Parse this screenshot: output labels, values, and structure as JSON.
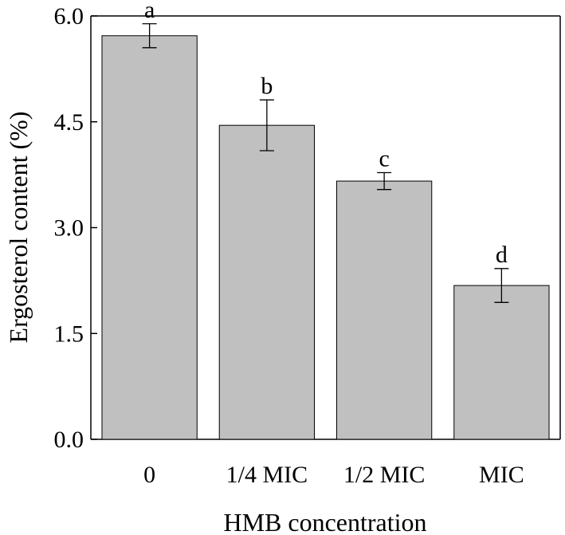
{
  "chart_data": {
    "type": "bar",
    "categories": [
      "0",
      "1/4 MIC",
      "1/2 MIC",
      "MIC"
    ],
    "values": [
      5.72,
      4.45,
      3.66,
      2.18
    ],
    "errors": [
      0.17,
      0.36,
      0.12,
      0.24
    ],
    "significance_letters": [
      "a",
      "b",
      "c",
      "d"
    ],
    "xlabel": "HMB concentration",
    "ylabel": "Ergosterol content (%)",
    "ylim": [
      0,
      6.0
    ],
    "yticks": [
      "0.0",
      "1.5",
      "3.0",
      "4.5",
      "6.0"
    ],
    "bar_color": "#c0c0c0",
    "grid": false,
    "legend": "none"
  }
}
